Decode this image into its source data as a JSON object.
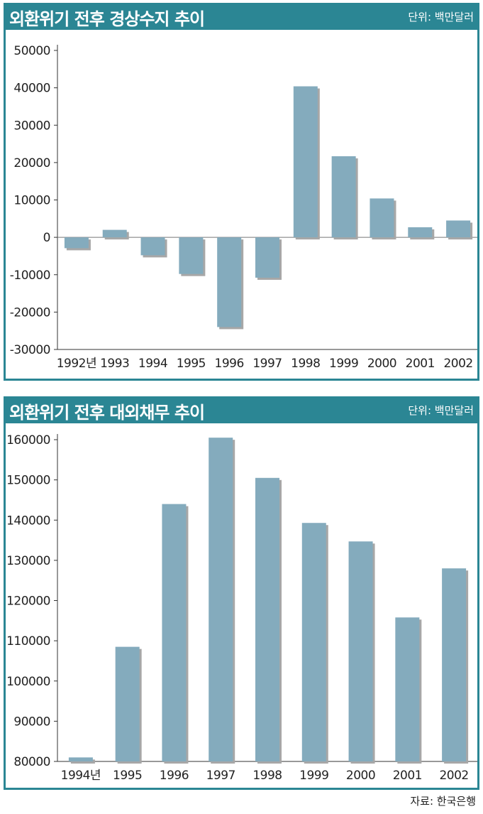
{
  "colors": {
    "frame": "#2b8694",
    "bar": "#84abbd",
    "shadow": "#a7a7a7",
    "axis": "#333333",
    "text": "#222222"
  },
  "source": "자료: 한국은행",
  "chart_data": [
    {
      "type": "bar",
      "title": "외환위기 전후 경상수지 추이",
      "unit": "단위: 백만달러",
      "categories": [
        "1992년",
        "1993",
        "1994",
        "1995",
        "1996",
        "1997",
        "1998",
        "1999",
        "2000",
        "2001",
        "2002"
      ],
      "values": [
        -2900,
        2000,
        -4800,
        -9800,
        -24000,
        -10800,
        40400,
        21700,
        10400,
        2700,
        4500
      ],
      "yticks": [
        "50000",
        "40000",
        "30000",
        "20000",
        "10000",
        "0",
        "-10000",
        "-20000",
        "-30000"
      ],
      "ylim": [
        -30000,
        50000
      ],
      "grid": false
    },
    {
      "type": "bar",
      "title": "외환위기 전후 대외채무 추이",
      "unit": "단위: 백만달러",
      "categories": [
        "1994년",
        "1995",
        "1996",
        "1997",
        "1998",
        "1999",
        "2000",
        "2001",
        "2002"
      ],
      "values": [
        81000,
        108500,
        144000,
        160500,
        150500,
        139300,
        134700,
        115800,
        128000
      ],
      "yticks": [
        "160000",
        "150000",
        "140000",
        "130000",
        "120000",
        "110000",
        "100000",
        "90000",
        "80000"
      ],
      "ylim": [
        80000,
        160000
      ],
      "grid": false
    }
  ]
}
